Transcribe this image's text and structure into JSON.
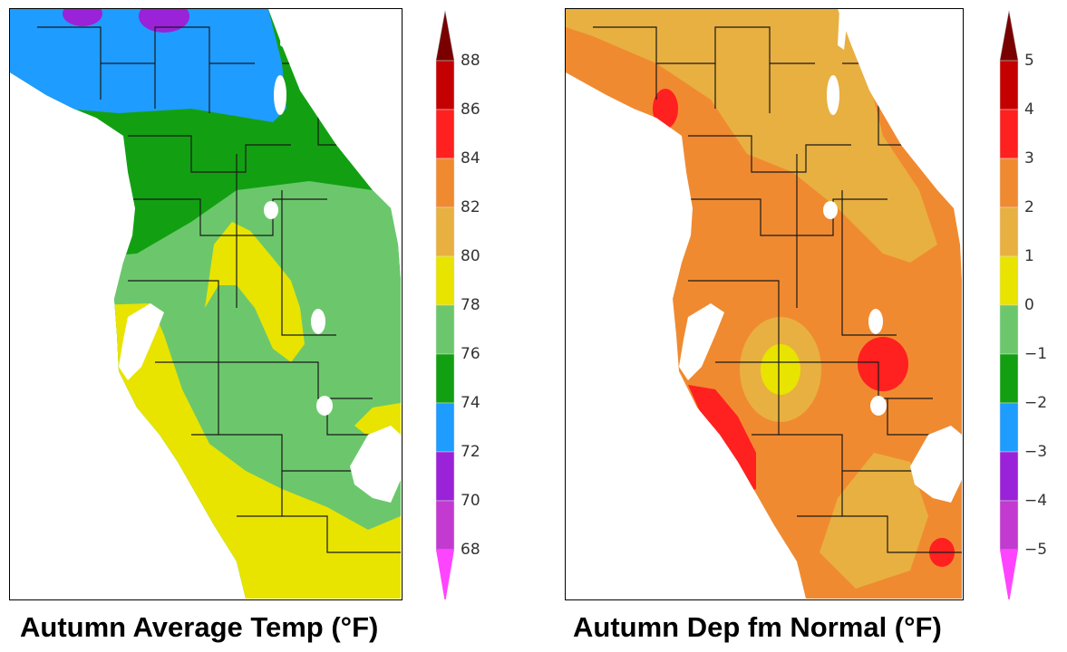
{
  "maps": [
    {
      "title": "Autumn Average Temp (°F)",
      "colorbar": {
        "labels": [
          "88",
          "86",
          "84",
          "82",
          "80",
          "78",
          "76",
          "74",
          "72",
          "70",
          "68"
        ],
        "colors": [
          "#c40000",
          "#ff2020",
          "#f08a30",
          "#e8b040",
          "#e8e400",
          "#6cc76c",
          "#12a012",
          "#1e9cff",
          "#9a22d8",
          "#c23ad0",
          "#ff44ff"
        ],
        "top_color": "#7a0000",
        "bottom_color": "#ff44ff"
      },
      "legend_entries": [
        {
          "label": "72–74",
          "color": "#1e9cff"
        },
        {
          "label": "74–76",
          "color": "#12a012"
        },
        {
          "label": "76–78",
          "color": "#6cc76c"
        },
        {
          "label": "78–80",
          "color": "#e8e400"
        }
      ]
    },
    {
      "title": "Autumn Dep fm Normal (°F)",
      "colorbar": {
        "labels": [
          "5",
          "4",
          "3",
          "2",
          "1",
          "0",
          "−1",
          "−2",
          "−3",
          "−4",
          "−5"
        ],
        "colors": [
          "#c40000",
          "#ff2020",
          "#f08a30",
          "#e8b040",
          "#e8e400",
          "#6cc76c",
          "#12a012",
          "#1e9cff",
          "#9a22d8",
          "#c23ad0",
          "#ff44ff"
        ],
        "top_color": "#7a0000",
        "bottom_color": "#ff44ff"
      },
      "legend_entries": [
        {
          "label": "0–1",
          "color": "#e8e400"
        },
        {
          "label": "1–2",
          "color": "#e8b040"
        },
        {
          "label": "2–3",
          "color": "#f08a30"
        },
        {
          "label": "3–4",
          "color": "#ff2020"
        }
      ]
    }
  ]
}
